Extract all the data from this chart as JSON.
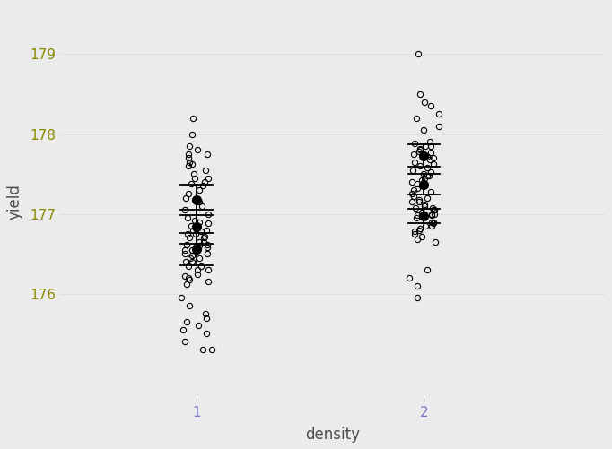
{
  "title": "",
  "xlabel": "density",
  "ylabel": "yield",
  "background_color": "#EBEBEB",
  "panel_bg": "#EBEBEB",
  "grid_color": "#FFFFFF",
  "panel_line_color": "#D9D9D9",
  "axis_label_color": "#4D4D4D",
  "tick_label_color_y": "#8B8B00",
  "tick_label_color_x": "#7B7BCC",
  "xlim": [
    0.4,
    2.8
  ],
  "ylim": [
    174.7,
    179.6
  ],
  "yticks": [
    176,
    177,
    178,
    179
  ],
  "xticks": [
    1,
    2
  ],
  "xticklabels": [
    "1",
    "2"
  ],
  "yticklabels": [
    "176",
    "177",
    "178",
    "179"
  ],
  "errorbar_cap_half": 0.07,
  "errorbar_linewidth": 1.3,
  "mean_marker_size": 7,
  "point_marker_size": 4.5,
  "point_linewidth": 0.8,
  "d1_subgroups": [
    {
      "x": 1.0,
      "mean": 177.18,
      "se": 0.19
    },
    {
      "x": 1.0,
      "mean": 176.84,
      "se": 0.21
    },
    {
      "x": 1.0,
      "mean": 176.56,
      "se": 0.2
    }
  ],
  "d2_subgroups": [
    {
      "x": 2.0,
      "mean": 177.73,
      "se": 0.14
    },
    {
      "x": 2.0,
      "mean": 177.37,
      "se": 0.13
    },
    {
      "x": 2.0,
      "mean": 176.97,
      "se": 0.09
    }
  ],
  "d1_points_y": [
    177.5,
    177.45,
    177.35,
    177.3,
    177.6,
    177.25,
    177.2,
    177.55,
    177.15,
    177.1,
    177.05,
    177.0,
    177.4,
    177.65,
    177.7,
    177.75,
    177.62,
    177.8,
    177.45,
    177.38,
    176.9,
    176.95,
    176.85,
    176.8,
    176.75,
    176.65,
    176.7,
    176.55,
    176.6,
    176.5,
    176.45,
    176.35,
    176.4,
    176.3,
    176.88,
    176.72,
    176.55,
    176.62,
    176.78,
    176.92,
    176.75,
    176.6,
    176.55,
    176.5,
    176.45,
    176.35,
    176.4,
    176.3,
    176.25,
    176.2,
    176.15,
    176.7,
    176.62,
    176.8,
    176.65,
    176.58,
    176.12,
    176.18,
    176.22,
    176.48
  ],
  "d1_extra_y": [
    178.2,
    177.85,
    177.75,
    178.0,
    175.85,
    175.6,
    175.4,
    175.5,
    175.55,
    175.3,
    175.75,
    175.65,
    175.95,
    175.7,
    175.3
  ],
  "d2_points_y": [
    177.9,
    177.85,
    177.75,
    177.8,
    177.65,
    177.7,
    177.72,
    177.6,
    177.55,
    177.78,
    177.82,
    177.68,
    177.58,
    177.63,
    177.73,
    177.88,
    177.48,
    177.52,
    177.85,
    177.77,
    177.5,
    177.45,
    177.35,
    177.4,
    177.3,
    177.25,
    177.2,
    177.15,
    177.1,
    177.05,
    177.38,
    177.42,
    177.28,
    177.32,
    177.22,
    177.18,
    177.08,
    177.0,
    176.98,
    177.48,
    177.05,
    177.0,
    176.95,
    176.9,
    176.85,
    176.9,
    176.88,
    176.8,
    176.75,
    176.98,
    177.02,
    176.85,
    177.08,
    177.15,
    177.12,
    176.72,
    176.68,
    176.78,
    176.82,
    176.65
  ],
  "d2_extra_y": [
    179.0,
    178.4,
    178.35,
    178.5,
    178.25,
    178.1,
    178.2,
    178.05,
    175.95,
    176.1,
    176.2,
    176.3
  ]
}
